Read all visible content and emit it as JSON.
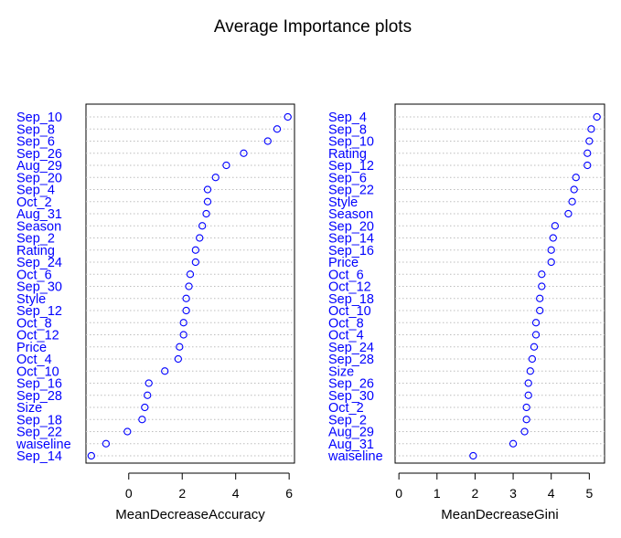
{
  "title": "Average Importance plots",
  "colors": {
    "points": "#0000ff",
    "labels": "#0000ff",
    "guides": "#bdbdbd"
  },
  "chart_data": [
    {
      "type": "dotchart",
      "xlabel": "MeanDecreaseAccuracy",
      "xlim": [
        -1.6,
        6.2
      ],
      "xticks": [
        0,
        2,
        4,
        6
      ],
      "categories": [
        "Sep_10",
        "Sep_8",
        "Sep_6",
        "Sep_26",
        "Aug_29",
        "Sep_20",
        "Sep_4",
        "Oct_2",
        "Aug_31",
        "Season",
        "Sep_2",
        "Rating",
        "Sep_24",
        "Oct_6",
        "Sep_30",
        "Style",
        "Sep_12",
        "Oct_8",
        "Oct_12",
        "Price",
        "Oct_4",
        "Oct_10",
        "Sep_16",
        "Sep_28",
        "Size",
        "Sep_18",
        "Sep_22",
        "waiseline",
        "Sep_14"
      ],
      "values": [
        5.95,
        5.55,
        5.2,
        4.3,
        3.65,
        3.25,
        2.95,
        2.95,
        2.9,
        2.75,
        2.65,
        2.5,
        2.5,
        2.3,
        2.25,
        2.15,
        2.15,
        2.05,
        2.05,
        1.9,
        1.85,
        1.35,
        0.75,
        0.7,
        0.6,
        0.5,
        -0.05,
        -0.85,
        -1.4
      ],
      "grid": "dotted horizontal guides"
    },
    {
      "type": "dotchart",
      "xlabel": "MeanDecreaseGini",
      "xlim": [
        -0.1,
        5.4
      ],
      "xticks": [
        0,
        1,
        2,
        3,
        4,
        5
      ],
      "categories": [
        "Sep_4",
        "Sep_8",
        "Sep_10",
        "Rating",
        "Sep_12",
        "Sep_6",
        "Sep_22",
        "Style",
        "Season",
        "Sep_20",
        "Sep_14",
        "Sep_16",
        "Price",
        "Oct_6",
        "Oct_12",
        "Sep_18",
        "Oct_10",
        "Oct_8",
        "Oct_4",
        "Sep_24",
        "Sep_28",
        "Size",
        "Sep_26",
        "Sep_30",
        "Oct_2",
        "Sep_2",
        "Aug_29",
        "Aug_31",
        "waiseline"
      ],
      "values": [
        5.2,
        5.05,
        5.0,
        4.95,
        4.95,
        4.65,
        4.6,
        4.55,
        4.45,
        4.1,
        4.05,
        4.0,
        4.0,
        3.75,
        3.75,
        3.7,
        3.7,
        3.6,
        3.6,
        3.55,
        3.5,
        3.45,
        3.4,
        3.4,
        3.35,
        3.35,
        3.3,
        3.0,
        1.95
      ],
      "grid": "dotted horizontal guides"
    }
  ]
}
